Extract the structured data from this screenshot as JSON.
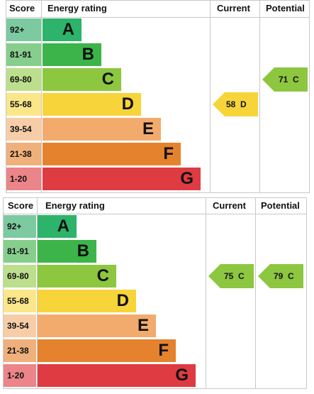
{
  "charts": [
    {
      "headers": {
        "score": "Score",
        "energy_rating": "Energy rating",
        "current": "Current",
        "potential": "Potential"
      },
      "current": {
        "value": "58",
        "letter": "D",
        "color": "#f7d43a"
      },
      "potential": {
        "value": "71",
        "letter": "C",
        "color": "#8dc63f"
      }
    },
    {
      "headers": {
        "score": "Score",
        "energy_rating": "Energy rating",
        "current": "Current",
        "potential": "Potential"
      },
      "current": {
        "value": "75",
        "letter": "C",
        "color": "#8dc63f"
      },
      "potential": {
        "value": "79",
        "letter": "C",
        "color": "#8dc63f"
      }
    }
  ],
  "bands": [
    {
      "score": "92+",
      "letter": "A",
      "color": "#2db36a",
      "score_bg": "#7ccaa0"
    },
    {
      "score": "81-91",
      "letter": "B",
      "color": "#3cb44a",
      "score_bg": "#86ce8c"
    },
    {
      "score": "69-80",
      "letter": "C",
      "color": "#8dc63f",
      "score_bg": "#bcdf8d"
    },
    {
      "score": "55-68",
      "letter": "D",
      "color": "#f7d43a",
      "score_bg": "#fbe68a"
    },
    {
      "score": "39-54",
      "letter": "E",
      "color": "#f2ab6d",
      "score_bg": "#f7cda8"
    },
    {
      "score": "21-38",
      "letter": "F",
      "color": "#e4822d",
      "score_bg": "#efb07c"
    },
    {
      "score": "1-20",
      "letter": "G",
      "color": "#de3b42",
      "score_bg": "#eb8589"
    }
  ]
}
